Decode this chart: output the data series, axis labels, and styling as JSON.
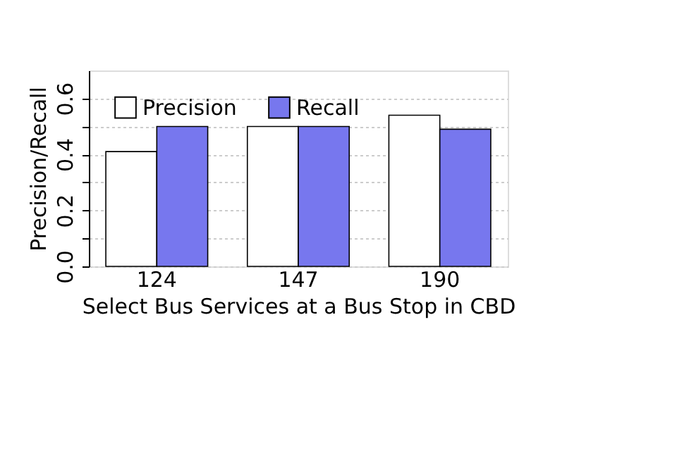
{
  "chart_data": {
    "type": "bar",
    "xlabel": "Select Bus Services at a Bus Stop in CBD",
    "ylabel": "Precision/Recall",
    "categories": [
      "124",
      "147",
      "190"
    ],
    "series": [
      {
        "name": "Precision",
        "color": "#ffffff",
        "values": [
          0.41,
          0.5,
          0.54
        ]
      },
      {
        "name": "Recall",
        "color": "#7777ee",
        "values": [
          0.5,
          0.5,
          0.49
        ]
      }
    ],
    "ylim": [
      0,
      0.7
    ],
    "yticks": [
      {
        "value": 0,
        "label": "0.0"
      },
      {
        "value": 0.1,
        "label": null
      },
      {
        "value": 0.2,
        "label": "0.2"
      },
      {
        "value": 0.3,
        "label": null
      },
      {
        "value": 0.4,
        "label": "0.4"
      },
      {
        "value": 0.5,
        "label": null
      },
      {
        "value": 0.6,
        "label": "0.6"
      }
    ],
    "grid": "y",
    "legend": "top left"
  }
}
